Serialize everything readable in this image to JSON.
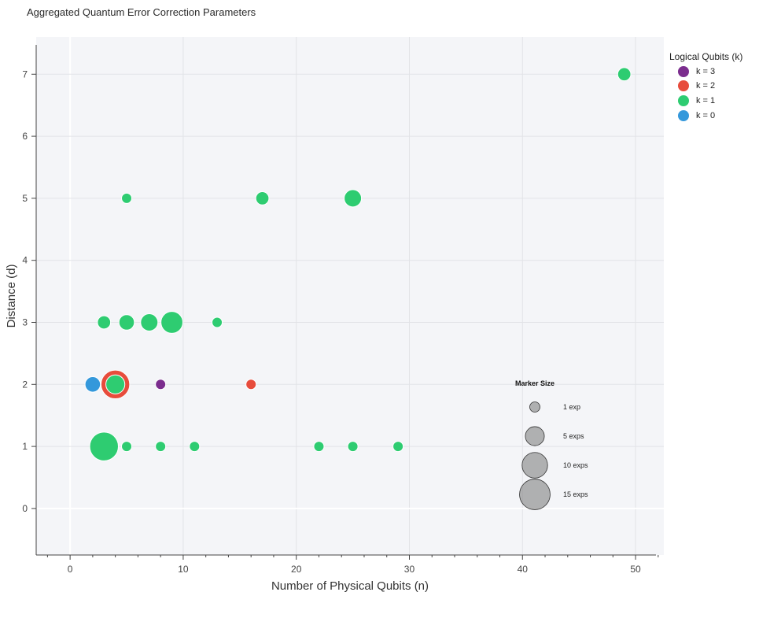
{
  "title": "Aggregated Quantum Error Correction Parameters",
  "chart_data": {
    "type": "scatter",
    "title": "Aggregated Quantum Error Correction Parameters",
    "xlabel": "Number of Physical Qubits (n)",
    "ylabel": "Distance (d)",
    "xlim": [
      -3,
      52.5
    ],
    "ylim": [
      -0.75,
      7.6
    ],
    "x_ticks": [
      0,
      10,
      20,
      30,
      40,
      50
    ],
    "y_ticks": [
      0,
      1,
      2,
      3,
      4,
      5,
      6,
      7
    ],
    "grid": true,
    "legend": {
      "title": "Logical Qubits (k)",
      "placement": "top-right outside",
      "entries": [
        {
          "label": "k = 3",
          "color": "#7b2d8e"
        },
        {
          "label": "k = 2",
          "color": "#e74c3c"
        },
        {
          "label": "k = 1",
          "color": "#2ecc71"
        },
        {
          "label": "k = 0",
          "color": "#3498db"
        }
      ]
    },
    "size_legend": {
      "title": "Marker Size",
      "entries": [
        {
          "label": "1 exp",
          "count": 1
        },
        {
          "label": "5 exps",
          "count": 5
        },
        {
          "label": "10 exps",
          "count": 10
        },
        {
          "label": "15 exps",
          "count": 15
        }
      ]
    },
    "series": [
      {
        "name": "k = 2",
        "color": "#e74c3c",
        "points": [
          {
            "x": 4,
            "y": 2,
            "count": 13
          },
          {
            "x": 16,
            "y": 2,
            "count": 1
          }
        ]
      },
      {
        "name": "k = 1",
        "color": "#2ecc71",
        "points": [
          {
            "x": 3,
            "y": 1,
            "count": 13
          },
          {
            "x": 4,
            "y": 2,
            "count": 5
          },
          {
            "x": 5,
            "y": 1,
            "count": 1
          },
          {
            "x": 8,
            "y": 1,
            "count": 1
          },
          {
            "x": 11,
            "y": 1,
            "count": 1
          },
          {
            "x": 22,
            "y": 1,
            "count": 1
          },
          {
            "x": 25,
            "y": 1,
            "count": 1
          },
          {
            "x": 29,
            "y": 1,
            "count": 1
          },
          {
            "x": 3,
            "y": 3,
            "count": 2
          },
          {
            "x": 5,
            "y": 3,
            "count": 3
          },
          {
            "x": 7,
            "y": 3,
            "count": 4
          },
          {
            "x": 9,
            "y": 3,
            "count": 7
          },
          {
            "x": 13,
            "y": 3,
            "count": 1
          },
          {
            "x": 5,
            "y": 5,
            "count": 1
          },
          {
            "x": 17,
            "y": 5,
            "count": 2
          },
          {
            "x": 25,
            "y": 5,
            "count": 4
          },
          {
            "x": 49,
            "y": 7,
            "count": 2
          }
        ]
      },
      {
        "name": "k = 3",
        "color": "#7b2d8e",
        "points": [
          {
            "x": 8,
            "y": 2,
            "count": 1
          }
        ]
      },
      {
        "name": "k = 0",
        "color": "#3498db",
        "points": [
          {
            "x": 2,
            "y": 2,
            "count": 3
          }
        ]
      }
    ]
  }
}
